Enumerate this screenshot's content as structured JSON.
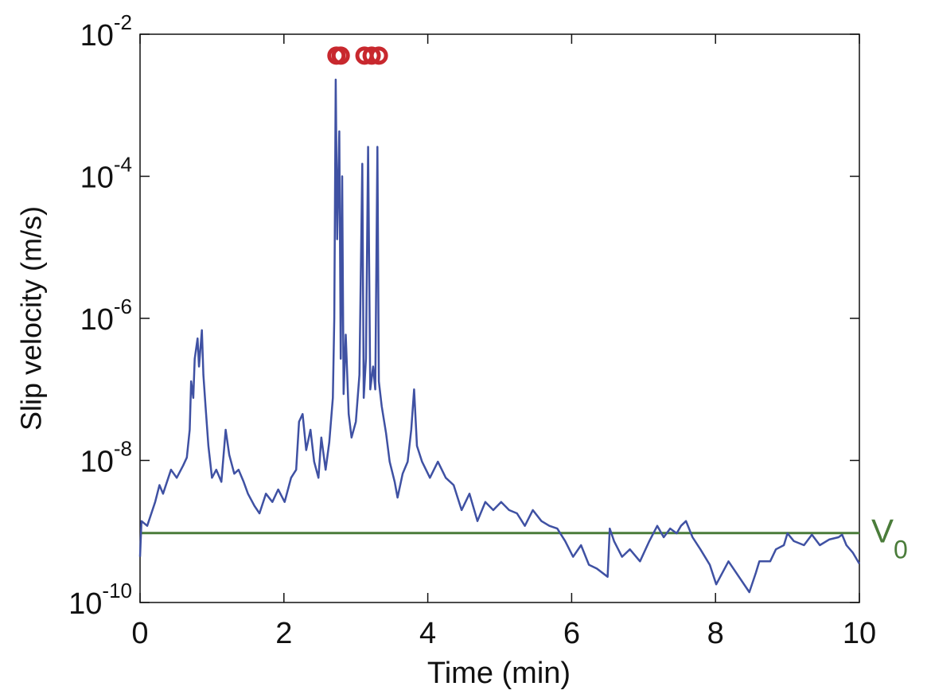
{
  "chart_data": {
    "type": "line",
    "xlabel": "Time (min)",
    "ylabel": "Slip velocity (m/s)",
    "log_y": true,
    "xlim": [
      0,
      10
    ],
    "xticks": [
      0,
      2,
      4,
      6,
      8,
      10
    ],
    "ylim": [
      1e-10,
      0.01
    ],
    "yticks": [
      {
        "value": 1e-10,
        "label": "10-10"
      },
      {
        "value": 1e-08,
        "label": "10-8"
      },
      {
        "value": 1e-06,
        "label": "10-6"
      },
      {
        "value": 0.0001,
        "label": "10-4"
      },
      {
        "value": 0.01,
        "label": "10-2"
      }
    ],
    "reference_lines": [
      {
        "value": 9.5e-10,
        "label": "V0",
        "color": "#4a7c3a"
      }
    ],
    "series": [
      {
        "color": "#3f51a3",
        "x": [
          0.0,
          0.02,
          0.1,
          0.21,
          0.27,
          0.32,
          0.43,
          0.51,
          0.6,
          0.65,
          0.69,
          0.71,
          0.74,
          0.76,
          0.8,
          0.82,
          0.86,
          0.88,
          0.91,
          0.95,
          1.0,
          1.06,
          1.13,
          1.19,
          1.24,
          1.31,
          1.37,
          1.44,
          1.5,
          1.59,
          1.66,
          1.75,
          1.84,
          1.92,
          2.01,
          2.1,
          2.17,
          2.21,
          2.26,
          2.31,
          2.37,
          2.42,
          2.48,
          2.52,
          2.58,
          2.63,
          2.68,
          2.7,
          2.72,
          2.74,
          2.77,
          2.79,
          2.81,
          2.83,
          2.86,
          2.9,
          2.94,
          3.0,
          3.05,
          3.09,
          3.11,
          3.14,
          3.17,
          3.2,
          3.24,
          3.27,
          3.3,
          3.32,
          3.36,
          3.42,
          3.47,
          3.54,
          3.58,
          3.65,
          3.72,
          3.77,
          3.81,
          3.85,
          3.92,
          4.03,
          4.14,
          4.25,
          4.36,
          4.47,
          4.58,
          4.69,
          4.8,
          4.91,
          5.02,
          5.13,
          5.24,
          5.35,
          5.46,
          5.58,
          5.69,
          5.8,
          5.91,
          6.02,
          6.13,
          6.24,
          6.35,
          6.5,
          6.53,
          6.59,
          6.7,
          6.81,
          6.95,
          7.08,
          7.19,
          7.28,
          7.37,
          7.46,
          7.52,
          7.59,
          7.68,
          7.79,
          7.92,
          8.01,
          8.18,
          8.47,
          8.56,
          8.61,
          8.76,
          8.84,
          8.95,
          9.0,
          9.09,
          9.23,
          9.34,
          9.45,
          9.58,
          9.71,
          9.76,
          9.82,
          9.91,
          10.0
        ],
        "values": [
          4.4e-10,
          1.4e-09,
          1.2e-09,
          2.6e-09,
          4.5e-09,
          3.4e-09,
          7.4e-09,
          5.7e-09,
          8.5e-09,
          1.1e-08,
          2.7e-08,
          1.3e-07,
          7.6e-08,
          2.7e-07,
          5.2e-07,
          2.1e-07,
          6.8e-07,
          1.6e-07,
          5.8e-08,
          1.6e-08,
          5.7e-09,
          7.4e-09,
          5e-09,
          2.7e-08,
          1.2e-08,
          6.5e-09,
          7.4e-09,
          5e-09,
          3.4e-09,
          2.3e-09,
          1.8e-09,
          3.4e-09,
          2.6e-09,
          3.9e-09,
          2.6e-09,
          5.7e-09,
          7.4e-09,
          3.5e-08,
          4.5e-08,
          1.4e-08,
          2.7e-08,
          9.6e-09,
          5.7e-09,
          2.1e-08,
          7.4e-09,
          1.8e-08,
          7.6e-08,
          1e-06,
          0.0023,
          1.3e-05,
          0.00043,
          2.7e-07,
          0.0001,
          8.6e-08,
          5.9e-07,
          4.5e-08,
          2.1e-08,
          3.5e-08,
          1.6e-07,
          0.00015,
          7.6e-08,
          2.7e-07,
          0.00026,
          1e-07,
          2.1e-07,
          1e-07,
          0.00026,
          1.3e-07,
          5.8e-08,
          2.4e-08,
          9.6e-09,
          5e-09,
          3e-09,
          6.5e-09,
          9.6e-09,
          2.7e-08,
          1e-07,
          1.6e-08,
          9.6e-09,
          5.7e-09,
          9.6e-09,
          5.7e-09,
          4.5e-09,
          2e-09,
          3.4e-09,
          1.4e-09,
          2.6e-09,
          2e-09,
          2.6e-09,
          2e-09,
          1.8e-09,
          1.2e-09,
          2e-09,
          1.4e-09,
          1.2e-09,
          1.1e-09,
          7.3e-10,
          4.4e-10,
          6.4e-10,
          3.4e-10,
          3e-10,
          2.3e-10,
          1.1e-09,
          7.3e-10,
          4.4e-10,
          5.6e-10,
          3.8e-10,
          7.3e-10,
          1.2e-09,
          8.3e-10,
          1.1e-09,
          9.4e-10,
          1.2e-09,
          1.4e-09,
          8.3e-10,
          5.6e-10,
          3.4e-10,
          1.8e-10,
          3.8e-10,
          1.4e-10,
          2.6e-10,
          3.8e-10,
          3.8e-10,
          5.6e-10,
          6.4e-10,
          9.4e-10,
          7.3e-10,
          6.4e-10,
          9e-10,
          6.4e-10,
          7.7e-10,
          8.3e-10,
          9e-10,
          6.4e-10,
          5e-10,
          3.5e-10
        ]
      },
      {
        "color": "#c8282e",
        "marker": "circle",
        "x": [
          2.73,
          2.79,
          3.12,
          3.22,
          3.32
        ],
        "values": [
          0.005,
          0.005,
          0.005,
          0.005,
          0.005
        ]
      }
    ]
  }
}
